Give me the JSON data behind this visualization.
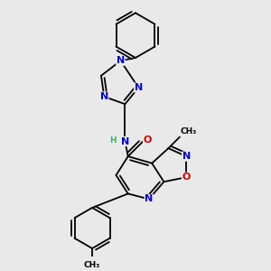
{
  "background_color": "#e9e9e9",
  "atom_colors": {
    "C": "#000000",
    "N": "#0000cc",
    "O": "#cc0000",
    "H": "#3cb371"
  },
  "lw": 1.3,
  "fs": 8.0,
  "fs_small": 6.5
}
